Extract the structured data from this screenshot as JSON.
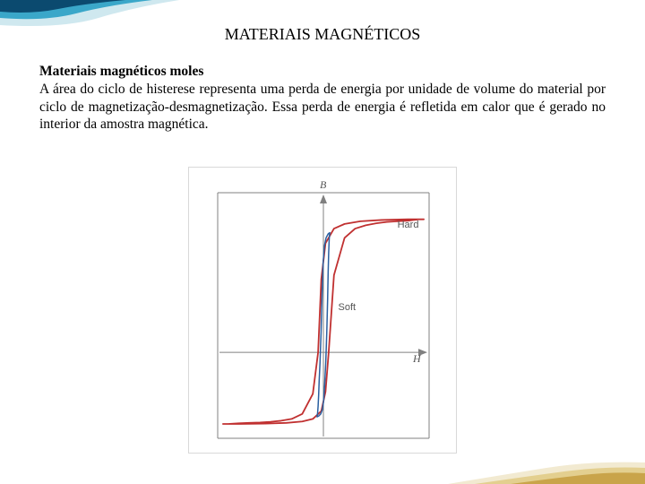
{
  "title": "MATERIAIS MAGNÉTICOS",
  "subheading": "Materiais magnéticos moles",
  "paragraph": "A área do ciclo de histerese representa uma perda de energia por unidade de volume do material por ciclo de magnetização-desmagnetização. Essa perda de energia é refletida em calor que é gerado no interior da amostra magnética.",
  "chart": {
    "type": "line",
    "xlim": [
      -1,
      1
    ],
    "ylim": [
      -1.2,
      1.2
    ],
    "background_color": "#ffffff",
    "frame_color": "#808080",
    "axis_color": "#808080",
    "y_axis_label": "B",
    "x_axis_label": "H",
    "label_fontsize": 12,
    "label_color": "#555555",
    "series": [
      {
        "name": "Hard",
        "color": "#c03030",
        "line_width": 1.8,
        "label": "Hard",
        "label_pos": [
          0.7,
          0.96
        ],
        "points": [
          [
            -0.95,
            -1.0
          ],
          [
            -0.9,
            -1.0
          ],
          [
            -0.8,
            -0.99
          ],
          [
            -0.7,
            -0.985
          ],
          [
            -0.6,
            -0.98
          ],
          [
            -0.5,
            -0.97
          ],
          [
            -0.4,
            -0.955
          ],
          [
            -0.3,
            -0.93
          ],
          [
            -0.2,
            -0.86
          ],
          [
            -0.1,
            -0.58
          ],
          [
            -0.05,
            0.0
          ],
          [
            -0.02,
            0.55
          ],
          [
            0.02,
            0.82
          ],
          [
            0.1,
            0.93
          ],
          [
            0.2,
            0.965
          ],
          [
            0.35,
            0.985
          ],
          [
            0.55,
            0.995
          ],
          [
            0.8,
            1.0
          ],
          [
            0.95,
            1.0
          ],
          [
            0.95,
            1.0
          ],
          [
            0.9,
            1.0
          ],
          [
            0.8,
            0.99
          ],
          [
            0.7,
            0.985
          ],
          [
            0.6,
            0.98
          ],
          [
            0.5,
            0.97
          ],
          [
            0.4,
            0.955
          ],
          [
            0.3,
            0.93
          ],
          [
            0.2,
            0.86
          ],
          [
            0.1,
            0.58
          ],
          [
            0.05,
            0.0
          ],
          [
            0.02,
            -0.55
          ],
          [
            -0.02,
            -0.82
          ],
          [
            -0.1,
            -0.93
          ],
          [
            -0.2,
            -0.965
          ],
          [
            -0.35,
            -0.985
          ],
          [
            -0.55,
            -0.995
          ],
          [
            -0.8,
            -1.0
          ],
          [
            -0.95,
            -1.0
          ]
        ]
      },
      {
        "name": "Soft",
        "color": "#2a5fa0",
        "line_width": 1.5,
        "label": "Soft",
        "label_pos": [
          0.14,
          0.34
        ],
        "points": [
          [
            -0.06,
            -0.9
          ],
          [
            -0.055,
            -0.85
          ],
          [
            -0.05,
            -0.75
          ],
          [
            -0.045,
            -0.6
          ],
          [
            -0.04,
            -0.4
          ],
          [
            -0.032,
            -0.15
          ],
          [
            -0.022,
            0.15
          ],
          [
            -0.012,
            0.45
          ],
          [
            -0.002,
            0.68
          ],
          [
            0.01,
            0.8
          ],
          [
            0.025,
            0.86
          ],
          [
            0.045,
            0.89
          ],
          [
            0.06,
            0.9
          ],
          [
            0.06,
            0.9
          ],
          [
            0.055,
            0.85
          ],
          [
            0.05,
            0.75
          ],
          [
            0.045,
            0.6
          ],
          [
            0.04,
            0.4
          ],
          [
            0.032,
            0.15
          ],
          [
            0.022,
            -0.15
          ],
          [
            0.012,
            -0.45
          ],
          [
            0.002,
            -0.68
          ],
          [
            -0.01,
            -0.8
          ],
          [
            -0.025,
            -0.86
          ],
          [
            -0.045,
            -0.89
          ],
          [
            -0.06,
            -0.9
          ]
        ]
      }
    ],
    "arrows": {
      "y_arrow": true,
      "x_arrow": true
    }
  },
  "decor": {
    "top_colors": [
      "#0b4a6f",
      "#3aa7c9",
      "#cfe8ef"
    ],
    "bottom_colors": [
      "#c9a44a",
      "#e3cf8f",
      "#f2ead1"
    ]
  }
}
